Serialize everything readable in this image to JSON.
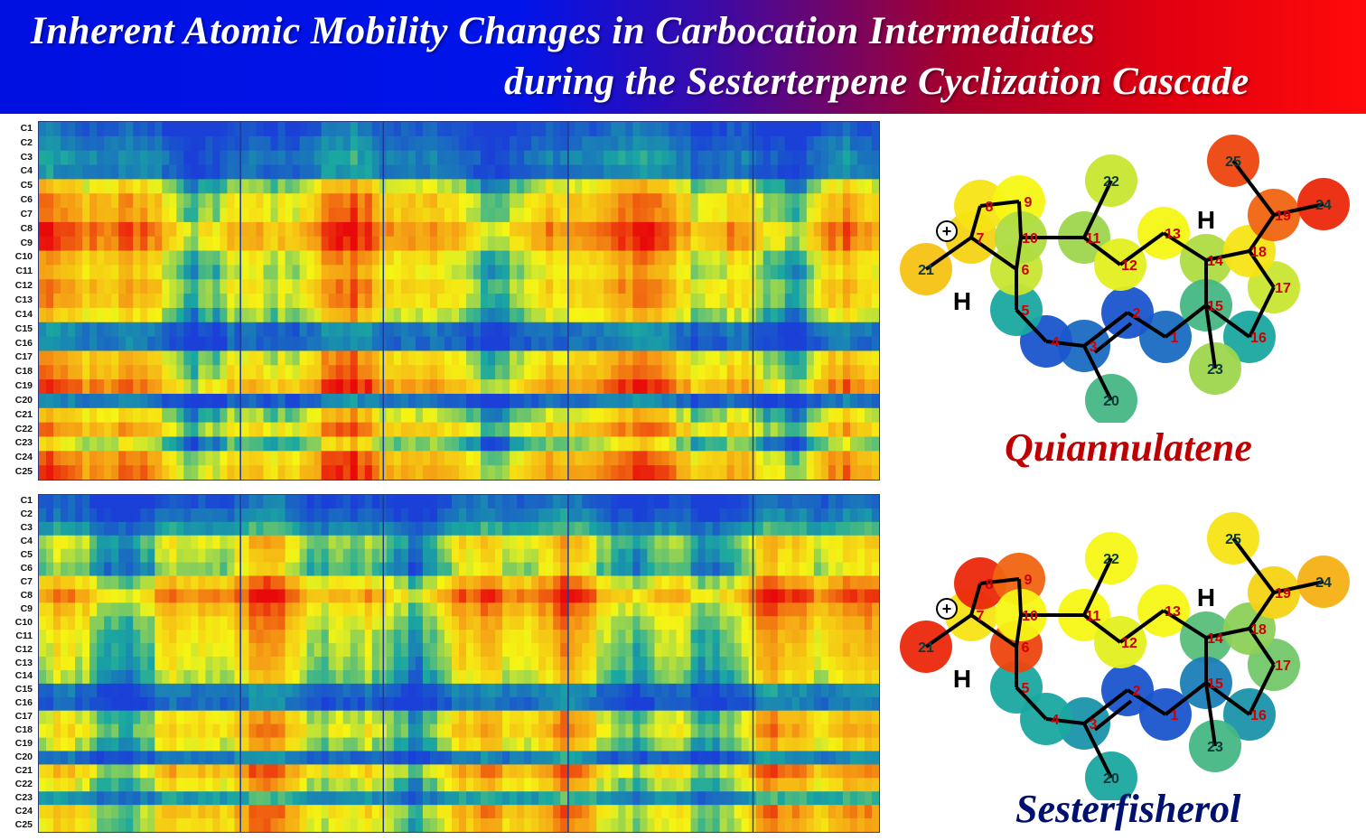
{
  "title": {
    "line1": "Inherent Atomic Mobility Changes in Carbocation Intermediates",
    "line2": "during the Sesterterpene Cyclization Cascade"
  },
  "colors": {
    "low": "#1a40d8",
    "mid_low": "#1aa8a0",
    "mid": "#f5f514",
    "mid_high": "#f5a014",
    "high": "#e80a0a",
    "quiannulatene_name": "#c00000",
    "sesterfisherol_name": "#00106e"
  },
  "heatmaps": [
    {
      "name": "quiannulatene-mobility-heatmap",
      "rows": [
        "C1",
        "C2",
        "C3",
        "C4",
        "C5",
        "C6",
        "C7",
        "C8",
        "C9",
        "C10",
        "C11",
        "C12",
        "C13",
        "C14",
        "C15",
        "C16",
        "C17",
        "C18",
        "C19",
        "C20",
        "C21",
        "C22",
        "C23",
        "C24",
        "C25"
      ],
      "row_mobility": [
        0.05,
        0.1,
        0.15,
        0.12,
        0.45,
        0.6,
        0.6,
        0.75,
        0.72,
        0.55,
        0.5,
        0.58,
        0.55,
        0.45,
        0.12,
        0.1,
        0.55,
        0.6,
        0.72,
        0.1,
        0.45,
        0.6,
        0.35,
        0.65,
        0.7
      ]
    },
    {
      "name": "sesterfisherol-mobility-heatmap",
      "rows": [
        "C1",
        "C2",
        "C3",
        "C4",
        "C5",
        "C6",
        "C7",
        "C8",
        "C9",
        "C10",
        "C11",
        "C12",
        "C13",
        "C14",
        "C15",
        "C16",
        "C17",
        "C18",
        "C19",
        "C20",
        "C21",
        "C22",
        "C23",
        "C24",
        "C25"
      ],
      "row_mobility": [
        0.05,
        0.1,
        0.2,
        0.45,
        0.4,
        0.35,
        0.6,
        0.75,
        0.62,
        0.55,
        0.5,
        0.48,
        0.45,
        0.4,
        0.12,
        0.08,
        0.5,
        0.55,
        0.45,
        0.12,
        0.62,
        0.5,
        0.2,
        0.6,
        0.55
      ]
    }
  ],
  "molecules": [
    {
      "name": "Quiannulatene",
      "atom_labels": [
        "1",
        "2",
        "3",
        "4",
        "5",
        "6",
        "7",
        "8",
        "9",
        "10",
        "11",
        "12",
        "13",
        "14",
        "15",
        "16",
        "17",
        "18",
        "19",
        "20",
        "21",
        "22",
        "23",
        "24",
        "25"
      ],
      "h_label": "H",
      "charge_symbol": "+"
    },
    {
      "name": "Sesterfisherol",
      "atom_labels": [
        "1",
        "2",
        "3",
        "4",
        "5",
        "6",
        "7",
        "8",
        "9",
        "10",
        "11",
        "12",
        "13",
        "14",
        "15",
        "16",
        "17",
        "18",
        "19",
        "20",
        "21",
        "22",
        "23",
        "24",
        "25"
      ],
      "h_label": "H",
      "charge_symbol": "+"
    }
  ]
}
